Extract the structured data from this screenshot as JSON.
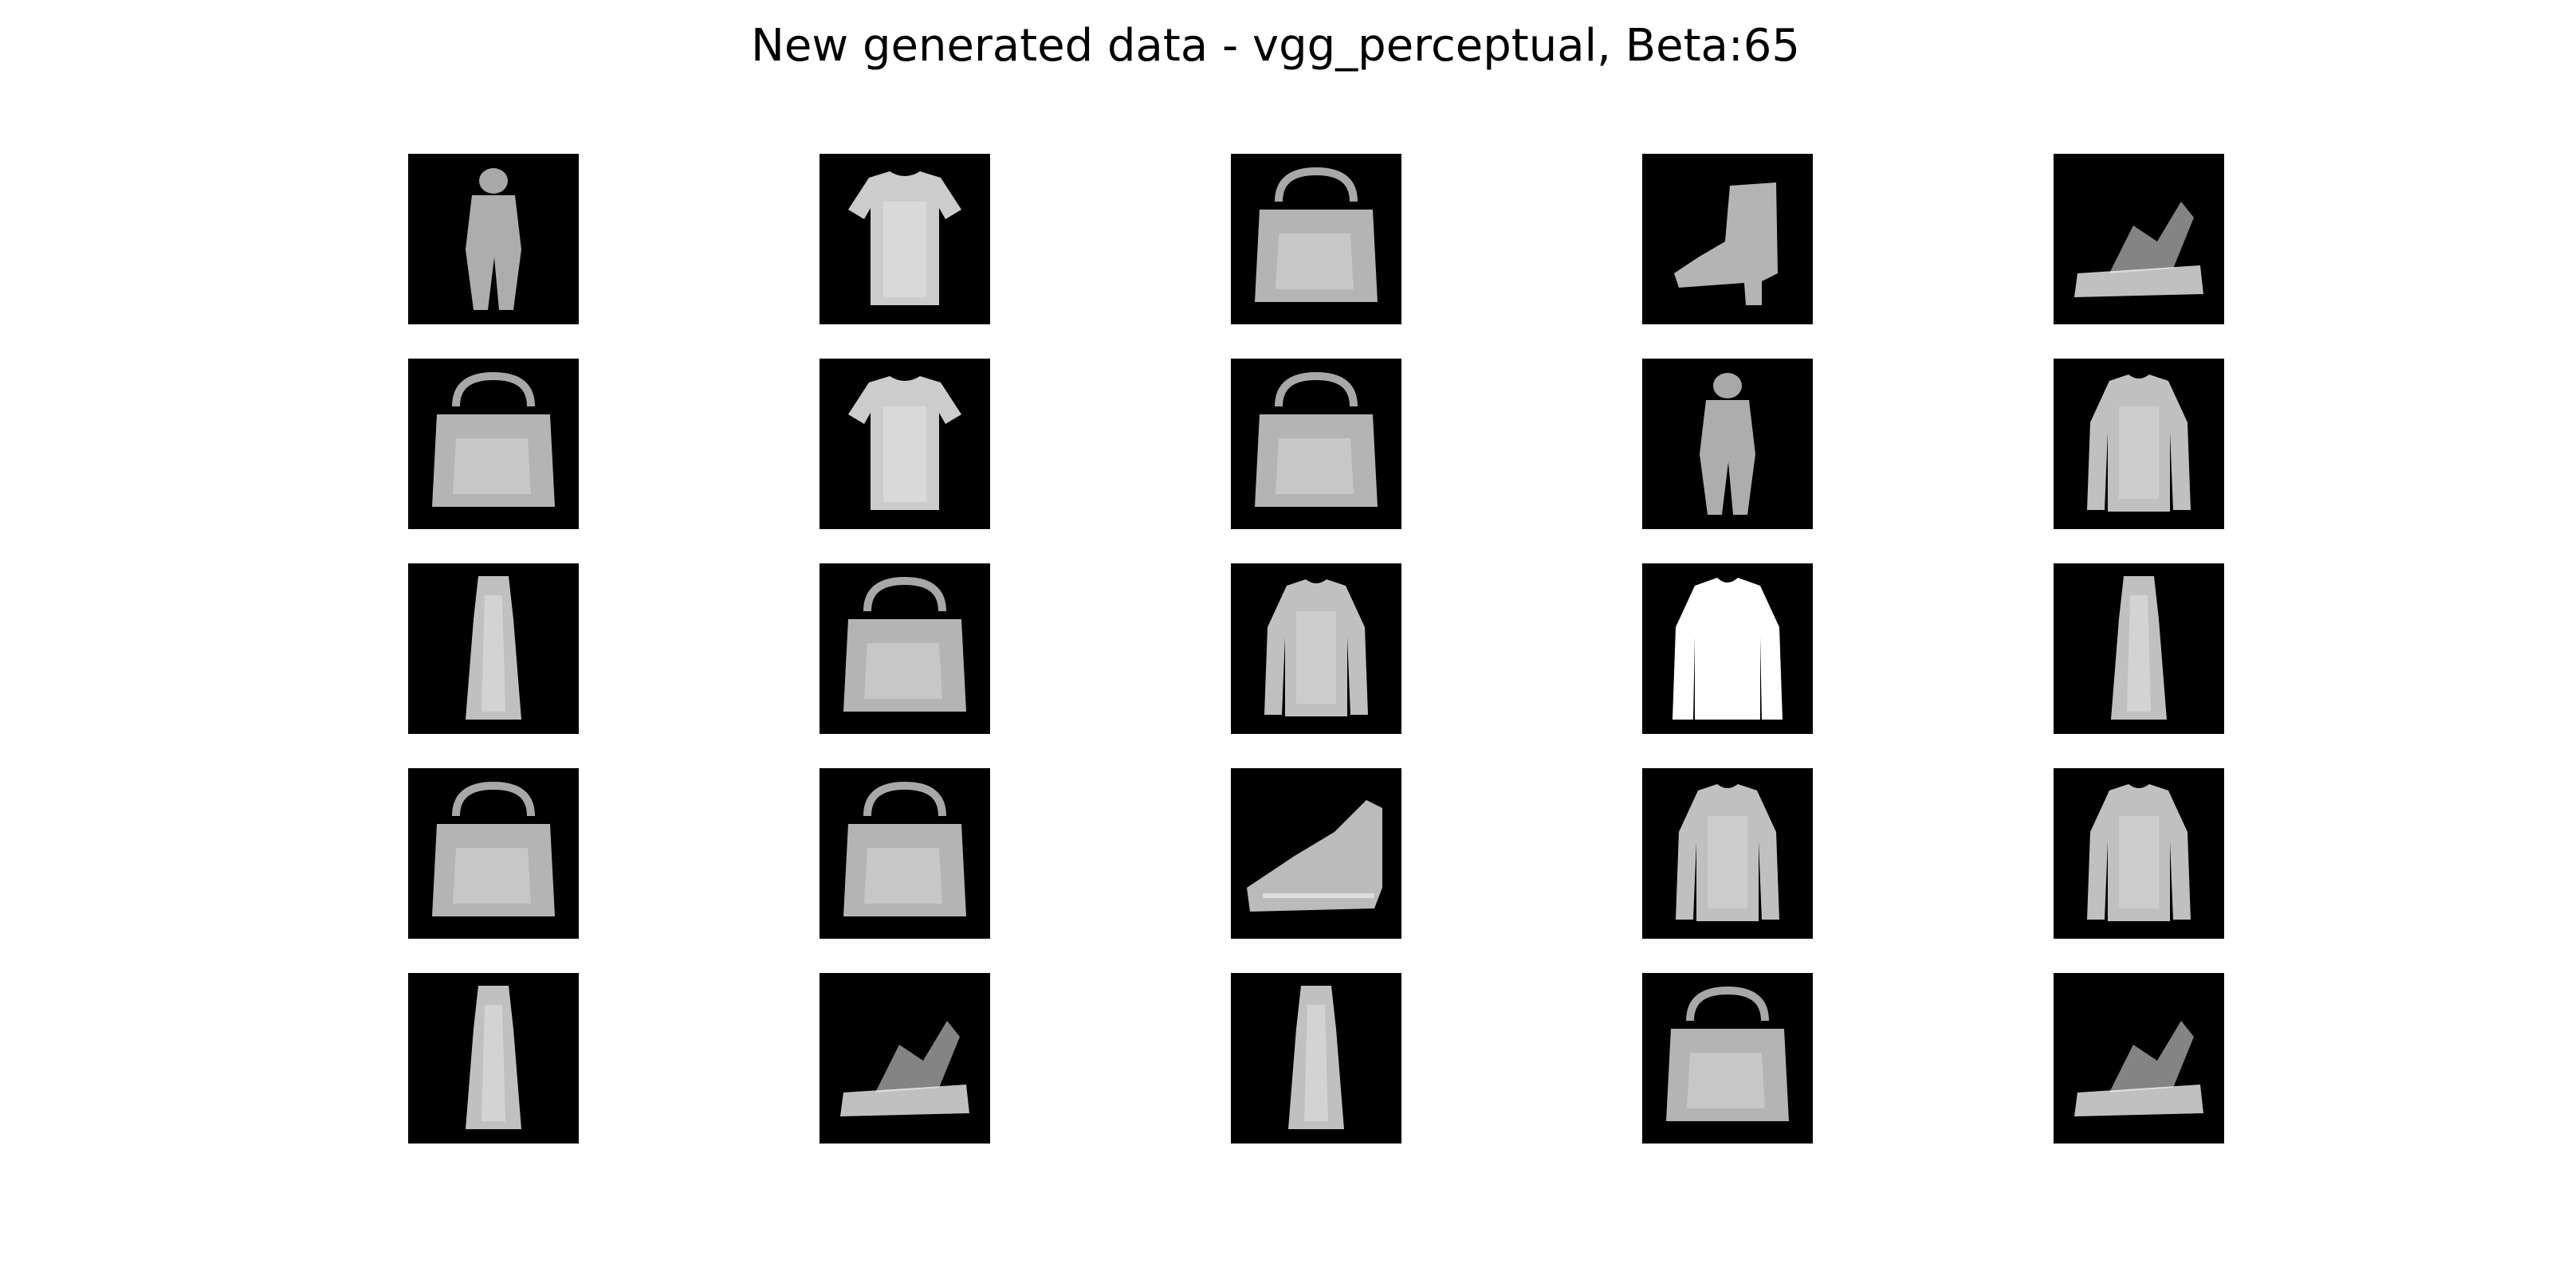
{
  "title": "New generated data - vgg_perceptual, Beta:65",
  "grid": {
    "rows": 5,
    "cols": 5,
    "background_color": "#000000",
    "foreground_color": "#f0f0f0",
    "items": [
      {
        "shape": "figure"
      },
      {
        "shape": "tshirt"
      },
      {
        "shape": "bag"
      },
      {
        "shape": "boot"
      },
      {
        "shape": "sandal"
      },
      {
        "shape": "bag"
      },
      {
        "shape": "tshirt"
      },
      {
        "shape": "bag"
      },
      {
        "shape": "figure"
      },
      {
        "shape": "pullover"
      },
      {
        "shape": "dress"
      },
      {
        "shape": "bag"
      },
      {
        "shape": "pullover"
      },
      {
        "shape": "pullover-bright"
      },
      {
        "shape": "dress"
      },
      {
        "shape": "bag"
      },
      {
        "shape": "bag"
      },
      {
        "shape": "sneaker"
      },
      {
        "shape": "pullover"
      },
      {
        "shape": "pullover"
      },
      {
        "shape": "dress"
      },
      {
        "shape": "sandal"
      },
      {
        "shape": "dress"
      },
      {
        "shape": "bag"
      },
      {
        "shape": "sandal"
      }
    ]
  }
}
